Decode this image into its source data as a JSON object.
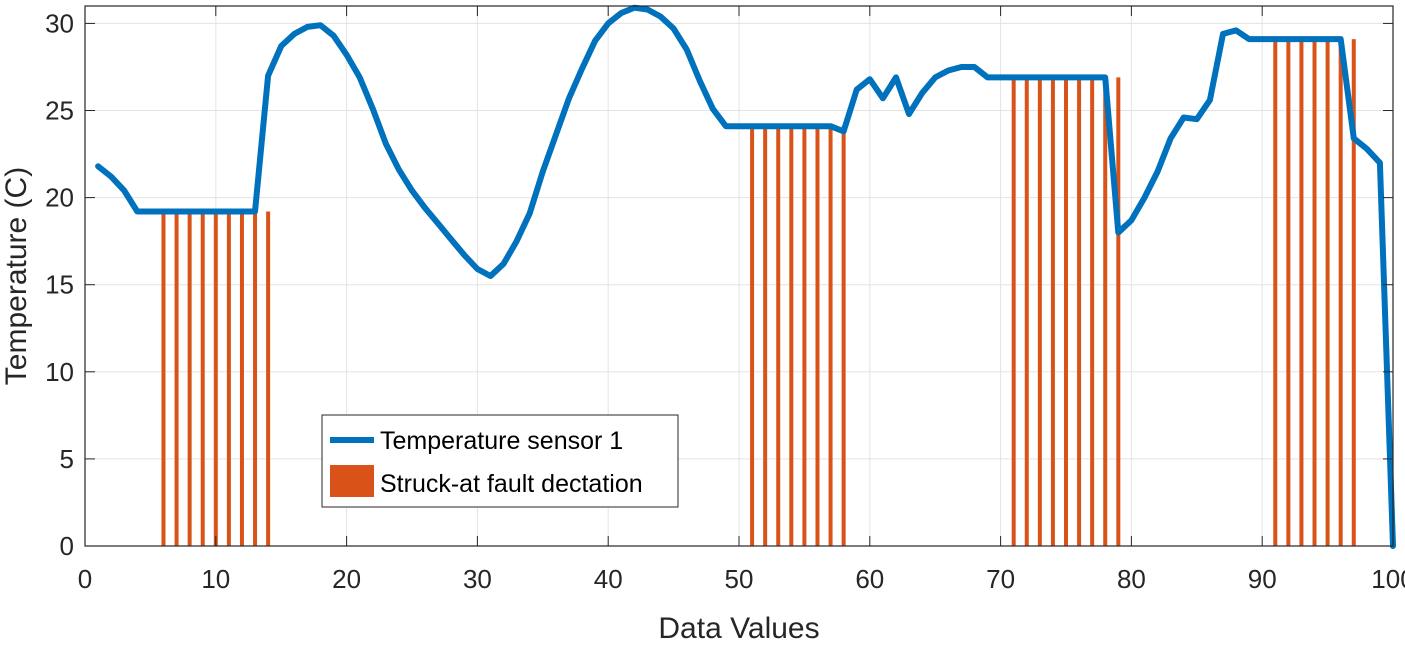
{
  "chart_data": {
    "type": "line",
    "title": "",
    "xlabel": "Data Values",
    "ylabel": "Temperature (C)",
    "xlim": [
      0,
      100
    ],
    "ylim": [
      0,
      31
    ],
    "xticks": [
      0,
      10,
      20,
      30,
      40,
      50,
      60,
      70,
      80,
      90,
      100
    ],
    "yticks": [
      0,
      5,
      10,
      15,
      20,
      25,
      30
    ],
    "grid": true,
    "legend_position": "center-left",
    "series": [
      {
        "name": "Temperature sensor 1",
        "kind": "line",
        "color": "#0072BD",
        "x": [
          1,
          2,
          3,
          4,
          5,
          6,
          7,
          8,
          9,
          10,
          11,
          12,
          13,
          14,
          15,
          16,
          17,
          18,
          19,
          20,
          21,
          22,
          23,
          24,
          25,
          26,
          27,
          28,
          29,
          30,
          31,
          32,
          33,
          34,
          35,
          36,
          37,
          38,
          39,
          40,
          41,
          42,
          43,
          44,
          45,
          46,
          47,
          48,
          49,
          50,
          51,
          52,
          53,
          54,
          55,
          56,
          57,
          58,
          59,
          60,
          61,
          62,
          63,
          64,
          65,
          66,
          67,
          68,
          69,
          70,
          71,
          72,
          73,
          74,
          75,
          76,
          77,
          78,
          79,
          80,
          81,
          82,
          83,
          84,
          85,
          86,
          87,
          88,
          89,
          90,
          91,
          92,
          93,
          94,
          95,
          96,
          97,
          98,
          99,
          100
        ],
        "y": [
          21.8,
          21.2,
          20.4,
          19.2,
          19.2,
          19.2,
          19.2,
          19.2,
          19.2,
          19.2,
          19.2,
          19.2,
          19.2,
          27.0,
          28.7,
          29.4,
          29.8,
          29.9,
          29.3,
          28.2,
          26.9,
          25.1,
          23.1,
          21.6,
          20.4,
          19.4,
          18.5,
          17.6,
          16.7,
          15.9,
          15.5,
          16.2,
          17.5,
          19.1,
          21.5,
          23.6,
          25.7,
          27.4,
          29.0,
          30.0,
          30.6,
          30.9,
          30.8,
          30.4,
          29.7,
          28.5,
          26.7,
          25.1,
          24.1,
          24.1,
          24.1,
          24.1,
          24.1,
          24.1,
          24.1,
          24.1,
          24.1,
          23.8,
          26.2,
          26.8,
          25.7,
          26.9,
          24.8,
          26.0,
          26.9,
          27.3,
          27.5,
          27.5,
          26.9,
          26.9,
          26.9,
          26.9,
          26.9,
          26.9,
          26.9,
          26.9,
          26.9,
          26.9,
          18.0,
          18.7,
          20.0,
          21.5,
          23.4,
          24.6,
          24.5,
          25.6,
          29.4,
          29.6,
          29.1,
          29.1,
          29.1,
          29.1,
          29.1,
          29.1,
          29.1,
          29.1,
          23.4,
          22.8,
          22.0,
          0.0
        ]
      },
      {
        "name": "Struck-at fault dectation",
        "kind": "stem-bar",
        "color": "#D95319",
        "x": [
          6,
          7,
          8,
          9,
          10,
          11,
          12,
          13,
          14,
          51,
          52,
          53,
          54,
          55,
          56,
          57,
          58,
          71,
          72,
          73,
          74,
          75,
          76,
          77,
          78,
          79,
          91,
          92,
          93,
          94,
          95,
          96,
          97
        ],
        "y": [
          19.2,
          19.2,
          19.2,
          19.2,
          19.2,
          19.2,
          19.2,
          19.2,
          19.2,
          24.1,
          24.1,
          24.1,
          24.1,
          24.1,
          24.1,
          24.1,
          24.1,
          26.9,
          26.9,
          26.9,
          26.9,
          26.9,
          26.9,
          26.9,
          26.9,
          26.9,
          29.1,
          29.1,
          29.1,
          29.1,
          29.1,
          29.1,
          29.1
        ]
      }
    ]
  }
}
